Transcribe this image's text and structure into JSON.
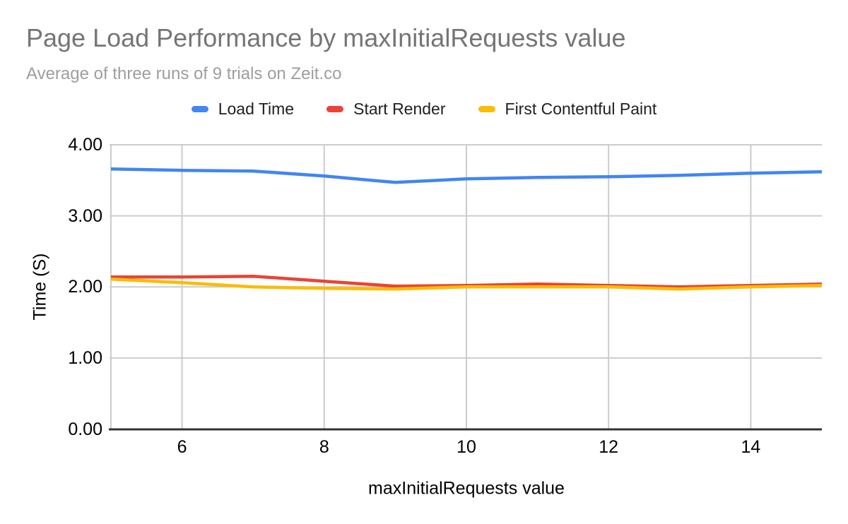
{
  "header": {
    "title": "Page Load Performance by maxInitialRequests value",
    "subtitle": "Average of three runs of 9 trials on Zeit.co",
    "title_color": "#757575",
    "subtitle_color": "#9e9e9e"
  },
  "chart_data": {
    "type": "line",
    "title": "Page Load Performance by maxInitialRequests value",
    "subtitle": "Average of three runs of 9 trials on Zeit.co",
    "xlabel": "maxInitialRequests value",
    "ylabel": "Time (S)",
    "x": [
      5,
      6,
      7,
      8,
      9,
      10,
      11,
      12,
      13,
      14,
      15
    ],
    "series": [
      {
        "name": "Load Time",
        "color": "#4285f4",
        "values": [
          3.66,
          3.64,
          3.63,
          3.56,
          3.47,
          3.52,
          3.54,
          3.55,
          3.57,
          3.6,
          3.62
        ]
      },
      {
        "name": "Start Render",
        "color": "#ea4335",
        "values": [
          2.14,
          2.14,
          2.15,
          2.08,
          2.01,
          2.02,
          2.04,
          2.02,
          2.0,
          2.02,
          2.04
        ]
      },
      {
        "name": "First Contentful Paint",
        "color": "#fbbc04",
        "values": [
          2.11,
          2.06,
          2.0,
          1.98,
          1.97,
          2.0,
          2.0,
          2.0,
          1.97,
          2.0,
          2.02
        ]
      }
    ],
    "xlim": [
      5,
      15
    ],
    "ylim": [
      0,
      4
    ],
    "x_ticks": [
      6,
      8,
      10,
      12,
      14
    ],
    "y_ticks": [
      "0.00",
      "1.00",
      "2.00",
      "3.00",
      "4.00"
    ],
    "grid": true,
    "legend_position": "top",
    "legend_text_color": "#212121",
    "axis_color": "#333333",
    "gridline_color": "#cccccc",
    "tick_text_color": "#000000"
  }
}
